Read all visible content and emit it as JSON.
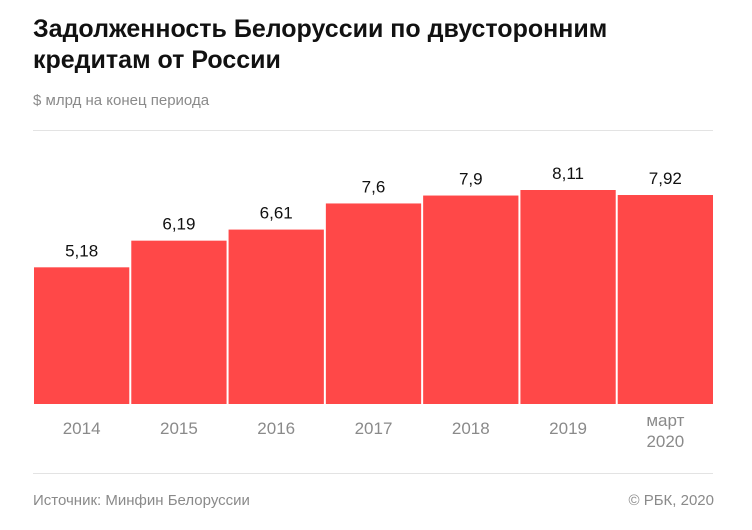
{
  "header": {
    "title": "Задолженность Белоруссии по двусторонним кредитам от России",
    "subtitle": "$ млрд на конец периода"
  },
  "footer": {
    "source": "Источник: Минфин Белоруссии",
    "copyright": "© РБК, 2020"
  },
  "colors": {
    "bar": "#ff4848",
    "label": "#111111",
    "tick": "#8a8a8a"
  },
  "chart_data": {
    "type": "bar",
    "title": "Задолженность Белоруссии по двусторонним кредитам от России",
    "subtitle": "$ млрд на конец периода",
    "categories": [
      "2014",
      "2015",
      "2016",
      "2017",
      "2018",
      "2019",
      "март 2020"
    ],
    "values": [
      5.18,
      6.19,
      6.61,
      7.6,
      7.9,
      8.11,
      7.92
    ],
    "value_labels": [
      "5,18",
      "6,19",
      "6,61",
      "7,6",
      "7,9",
      "8,11",
      "7,92"
    ],
    "ylim": [
      0,
      8.11
    ],
    "grid": false,
    "legend": "none"
  }
}
